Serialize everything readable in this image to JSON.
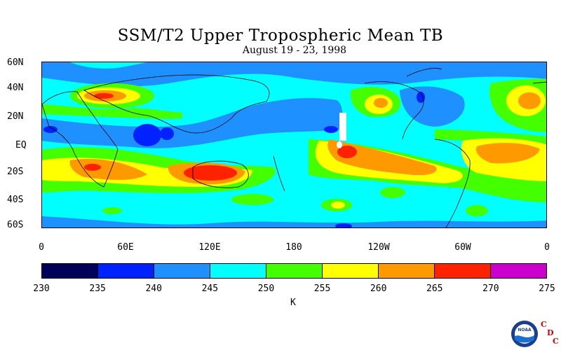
{
  "title": "SSM/T2 Upper Tropospheric Mean TB",
  "subtitle": "August 19 - 23, 1998",
  "latitude_labels": [
    "60N",
    "40N",
    "20N",
    "EQ",
    "20S",
    "40S",
    "60S"
  ],
  "longitude_labels": [
    "0",
    "60E",
    "120E",
    "180",
    "120W",
    "60W",
    "0"
  ],
  "colorbar": {
    "ticks": [
      "230",
      "235",
      "240",
      "245",
      "250",
      "255",
      "260",
      "265",
      "270",
      "275"
    ],
    "colors": [
      "#00005a",
      "#0022ff",
      "#1e90ff",
      "#00ffff",
      "#44ff00",
      "#ffff00",
      "#ff9900",
      "#ff2200",
      "#cc00cc"
    ],
    "unit": "K"
  },
  "logo": {
    "noaa_text": "NOAA",
    "cdc_letters": [
      "C",
      "D",
      "C"
    ]
  }
}
